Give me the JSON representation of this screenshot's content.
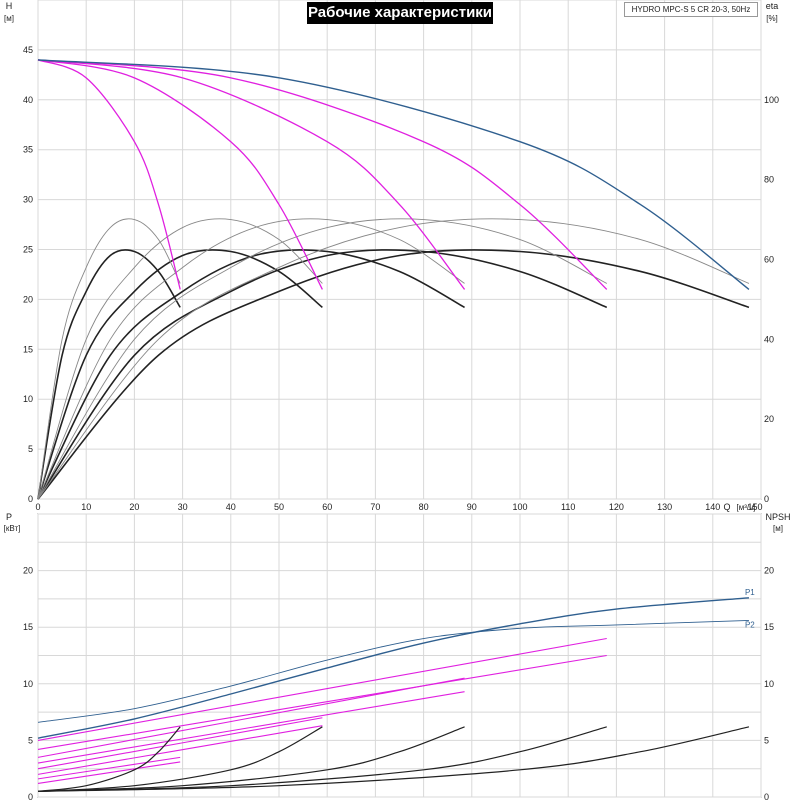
{
  "title": "Рабочие характеристики",
  "model": "HYDRO MPC-S 5 CR 20-3, 50Hz",
  "colors": {
    "pink": "#e020e0",
    "blue": "#2f5f8f",
    "dark": "#222222",
    "gray": "#888888",
    "grid": "#d8d8d8"
  },
  "chart_data": [
    {
      "type": "line",
      "name": "head-efficiency",
      "x_label_text": "Q",
      "x_unit": "[м³/ч]",
      "xlim": [
        0,
        150
      ],
      "x_ticks": [
        0,
        10,
        20,
        30,
        40,
        50,
        60,
        70,
        80,
        90,
        100,
        110,
        120,
        130,
        140,
        150
      ],
      "y_label_text": "H",
      "y_unit": "[м]",
      "ylim": [
        0,
        50
      ],
      "y_ticks": [
        0,
        5,
        10,
        15,
        20,
        25,
        30,
        35,
        40,
        45
      ],
      "y2_label_text": "eta",
      "y2_unit": "[%]",
      "y2lim": [
        0,
        125
      ],
      "y2_ticks": [
        0,
        20,
        40,
        60,
        80,
        100
      ],
      "head_curves": [
        {
          "pumps": 1,
          "x": [
            0,
            10,
            20,
            25,
            29.5
          ],
          "y": [
            44,
            42.2,
            35.8,
            29.5,
            21
          ]
        },
        {
          "pumps": 2,
          "x": [
            0,
            20,
            40,
            50,
            59
          ],
          "y": [
            44,
            42.2,
            35.8,
            29.5,
            21
          ]
        },
        {
          "pumps": 3,
          "x": [
            0,
            30,
            60,
            75,
            88.5
          ],
          "y": [
            44,
            42.2,
            35.8,
            29.5,
            21
          ]
        },
        {
          "pumps": 4,
          "x": [
            0,
            40,
            80,
            100,
            118
          ],
          "y": [
            44,
            42.2,
            35.8,
            29.5,
            21
          ]
        },
        {
          "pumps": 5,
          "x": [
            0,
            50,
            100,
            125,
            147.5
          ],
          "y": [
            44,
            42.2,
            35.8,
            29.5,
            21
          ]
        }
      ],
      "efficiency_curves": [
        {
          "pumps": 1,
          "x": [
            0,
            5,
            10,
            15,
            20,
            25,
            29.5
          ],
          "y": [
            0,
            40,
            58,
            68,
            70,
            65,
            54
          ]
        },
        {
          "pumps": 2,
          "x": [
            0,
            10,
            20,
            30,
            40,
            50,
            59
          ],
          "y": [
            0,
            40,
            58,
            68,
            70,
            65,
            54
          ]
        },
        {
          "pumps": 3,
          "x": [
            0,
            15,
            30,
            45,
            60,
            75,
            88.5
          ],
          "y": [
            0,
            40,
            58,
            68,
            70,
            65,
            54
          ]
        },
        {
          "pumps": 4,
          "x": [
            0,
            20,
            40,
            60,
            80,
            100,
            118
          ],
          "y": [
            0,
            40,
            58,
            68,
            70,
            65,
            54
          ]
        },
        {
          "pumps": 5,
          "x": [
            0,
            25,
            50,
            75,
            100,
            125,
            147.5
          ],
          "y": [
            0,
            40,
            58,
            68,
            70,
            65,
            54
          ]
        }
      ],
      "total_efficiency_curves": [
        {
          "pumps": 1,
          "x": [
            0,
            5,
            10,
            15,
            20,
            25,
            29.5
          ],
          "y": [
            0,
            36,
            52,
            61,
            62,
            57,
            48
          ]
        },
        {
          "pumps": 2,
          "x": [
            0,
            10,
            20,
            30,
            40,
            50,
            59
          ],
          "y": [
            0,
            36,
            52,
            61,
            62,
            57,
            48
          ]
        },
        {
          "pumps": 3,
          "x": [
            0,
            15,
            30,
            45,
            60,
            75,
            88.5
          ],
          "y": [
            0,
            36,
            52,
            61,
            62,
            57,
            48
          ]
        },
        {
          "pumps": 4,
          "x": [
            0,
            20,
            40,
            60,
            80,
            100,
            118
          ],
          "y": [
            0,
            36,
            52,
            61,
            62,
            57,
            48
          ]
        },
        {
          "pumps": 5,
          "x": [
            0,
            25,
            50,
            75,
            100,
            125,
            147.5
          ],
          "y": [
            0,
            36,
            52,
            61,
            62,
            57,
            48
          ]
        }
      ]
    },
    {
      "type": "line",
      "name": "power-npsh",
      "x_label_text": "Q",
      "xlim": [
        0,
        150
      ],
      "y_label_text": "P",
      "y_unit": "[кВт]",
      "ylim": [
        0,
        25
      ],
      "y_ticks": [
        0,
        5,
        10,
        15,
        20
      ],
      "y2_label_text": "NPSH",
      "y2_unit": "[м]",
      "y2lim": [
        0,
        25
      ],
      "y2_ticks": [
        0,
        5,
        10,
        15,
        20
      ],
      "power_series": [
        {
          "name": "P1",
          "x": [
            0,
            20,
            40,
            60,
            80,
            100,
            120,
            147.5
          ],
          "y": [
            5.2,
            6.9,
            9.1,
            11.4,
            13.6,
            15.3,
            16.6,
            17.6
          ]
        },
        {
          "name": "P2",
          "x": [
            0,
            20,
            40,
            60,
            80,
            100,
            120,
            147.5
          ],
          "y": [
            6.6,
            7.8,
            9.8,
            12.1,
            14.0,
            14.9,
            15.2,
            15.6
          ]
        }
      ],
      "power_pink_curves": [
        {
          "x": [
            0,
            29.5
          ],
          "y": [
            1.2,
            3.1
          ]
        },
        {
          "x": [
            0,
            29.5
          ],
          "y": [
            1.6,
            3.5
          ]
        },
        {
          "x": [
            0,
            59
          ],
          "y": [
            2.0,
            6.3
          ]
        },
        {
          "x": [
            0,
            59
          ],
          "y": [
            2.5,
            7.0
          ]
        },
        {
          "x": [
            0,
            88.5
          ],
          "y": [
            3.0,
            9.3
          ]
        },
        {
          "x": [
            0,
            88.5
          ],
          "y": [
            3.5,
            10.5
          ]
        },
        {
          "x": [
            0,
            118
          ],
          "y": [
            4.2,
            12.5
          ]
        },
        {
          "x": [
            0,
            118
          ],
          "y": [
            5.0,
            14.0
          ]
        }
      ],
      "npsh_curves": [
        {
          "pumps": 1,
          "x": [
            0,
            10,
            20,
            25,
            29.5
          ],
          "y": [
            0.5,
            1.0,
            2.4,
            4.0,
            6.2
          ]
        },
        {
          "pumps": 2,
          "x": [
            0,
            20,
            40,
            50,
            59
          ],
          "y": [
            0.5,
            1.0,
            2.4,
            4.0,
            6.2
          ]
        },
        {
          "pumps": 3,
          "x": [
            0,
            30,
            60,
            75,
            88.5
          ],
          "y": [
            0.5,
            1.0,
            2.4,
            4.0,
            6.2
          ]
        },
        {
          "pumps": 4,
          "x": [
            0,
            40,
            80,
            100,
            118
          ],
          "y": [
            0.5,
            1.0,
            2.4,
            4.0,
            6.2
          ]
        },
        {
          "pumps": 5,
          "x": [
            0,
            50,
            100,
            125,
            147.5
          ],
          "y": [
            0.5,
            1.0,
            2.4,
            4.0,
            6.2
          ]
        }
      ]
    }
  ]
}
